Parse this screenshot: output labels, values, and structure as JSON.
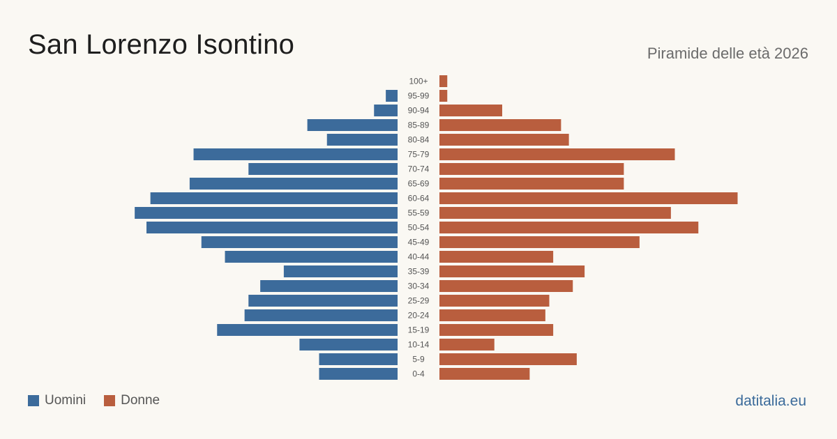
{
  "header": {
    "title": "San Lorenzo  Isontino",
    "subtitle": "Piramide delle età 2026"
  },
  "legend": {
    "men_label": "Uomini",
    "women_label": "Donne"
  },
  "footer": {
    "brand": "datitalia.eu"
  },
  "colors": {
    "men": "#3c6b9b",
    "women": "#b95e3e",
    "background": "#faf8f3",
    "label_text": "#555555"
  },
  "chart_data": {
    "type": "bar",
    "orientation": "horizontal-pyramid",
    "categories": [
      "100+",
      "95-99",
      "90-94",
      "85-89",
      "80-84",
      "75-79",
      "70-74",
      "65-69",
      "60-64",
      "55-59",
      "50-54",
      "45-49",
      "40-44",
      "35-39",
      "30-34",
      "25-29",
      "20-24",
      "15-19",
      "10-14",
      "5-9",
      "0-4"
    ],
    "series": [
      {
        "name": "Uomini",
        "values": [
          0,
          3,
          6,
          23,
          18,
          52,
          38,
          53,
          63,
          67,
          64,
          50,
          44,
          29,
          35,
          38,
          39,
          46,
          25,
          20,
          20
        ]
      },
      {
        "name": "Donne",
        "values": [
          2,
          2,
          16,
          31,
          33,
          60,
          47,
          47,
          76,
          59,
          66,
          51,
          29,
          37,
          34,
          28,
          27,
          29,
          14,
          35,
          23
        ]
      }
    ],
    "xlim": [
      0,
      80
    ]
  }
}
